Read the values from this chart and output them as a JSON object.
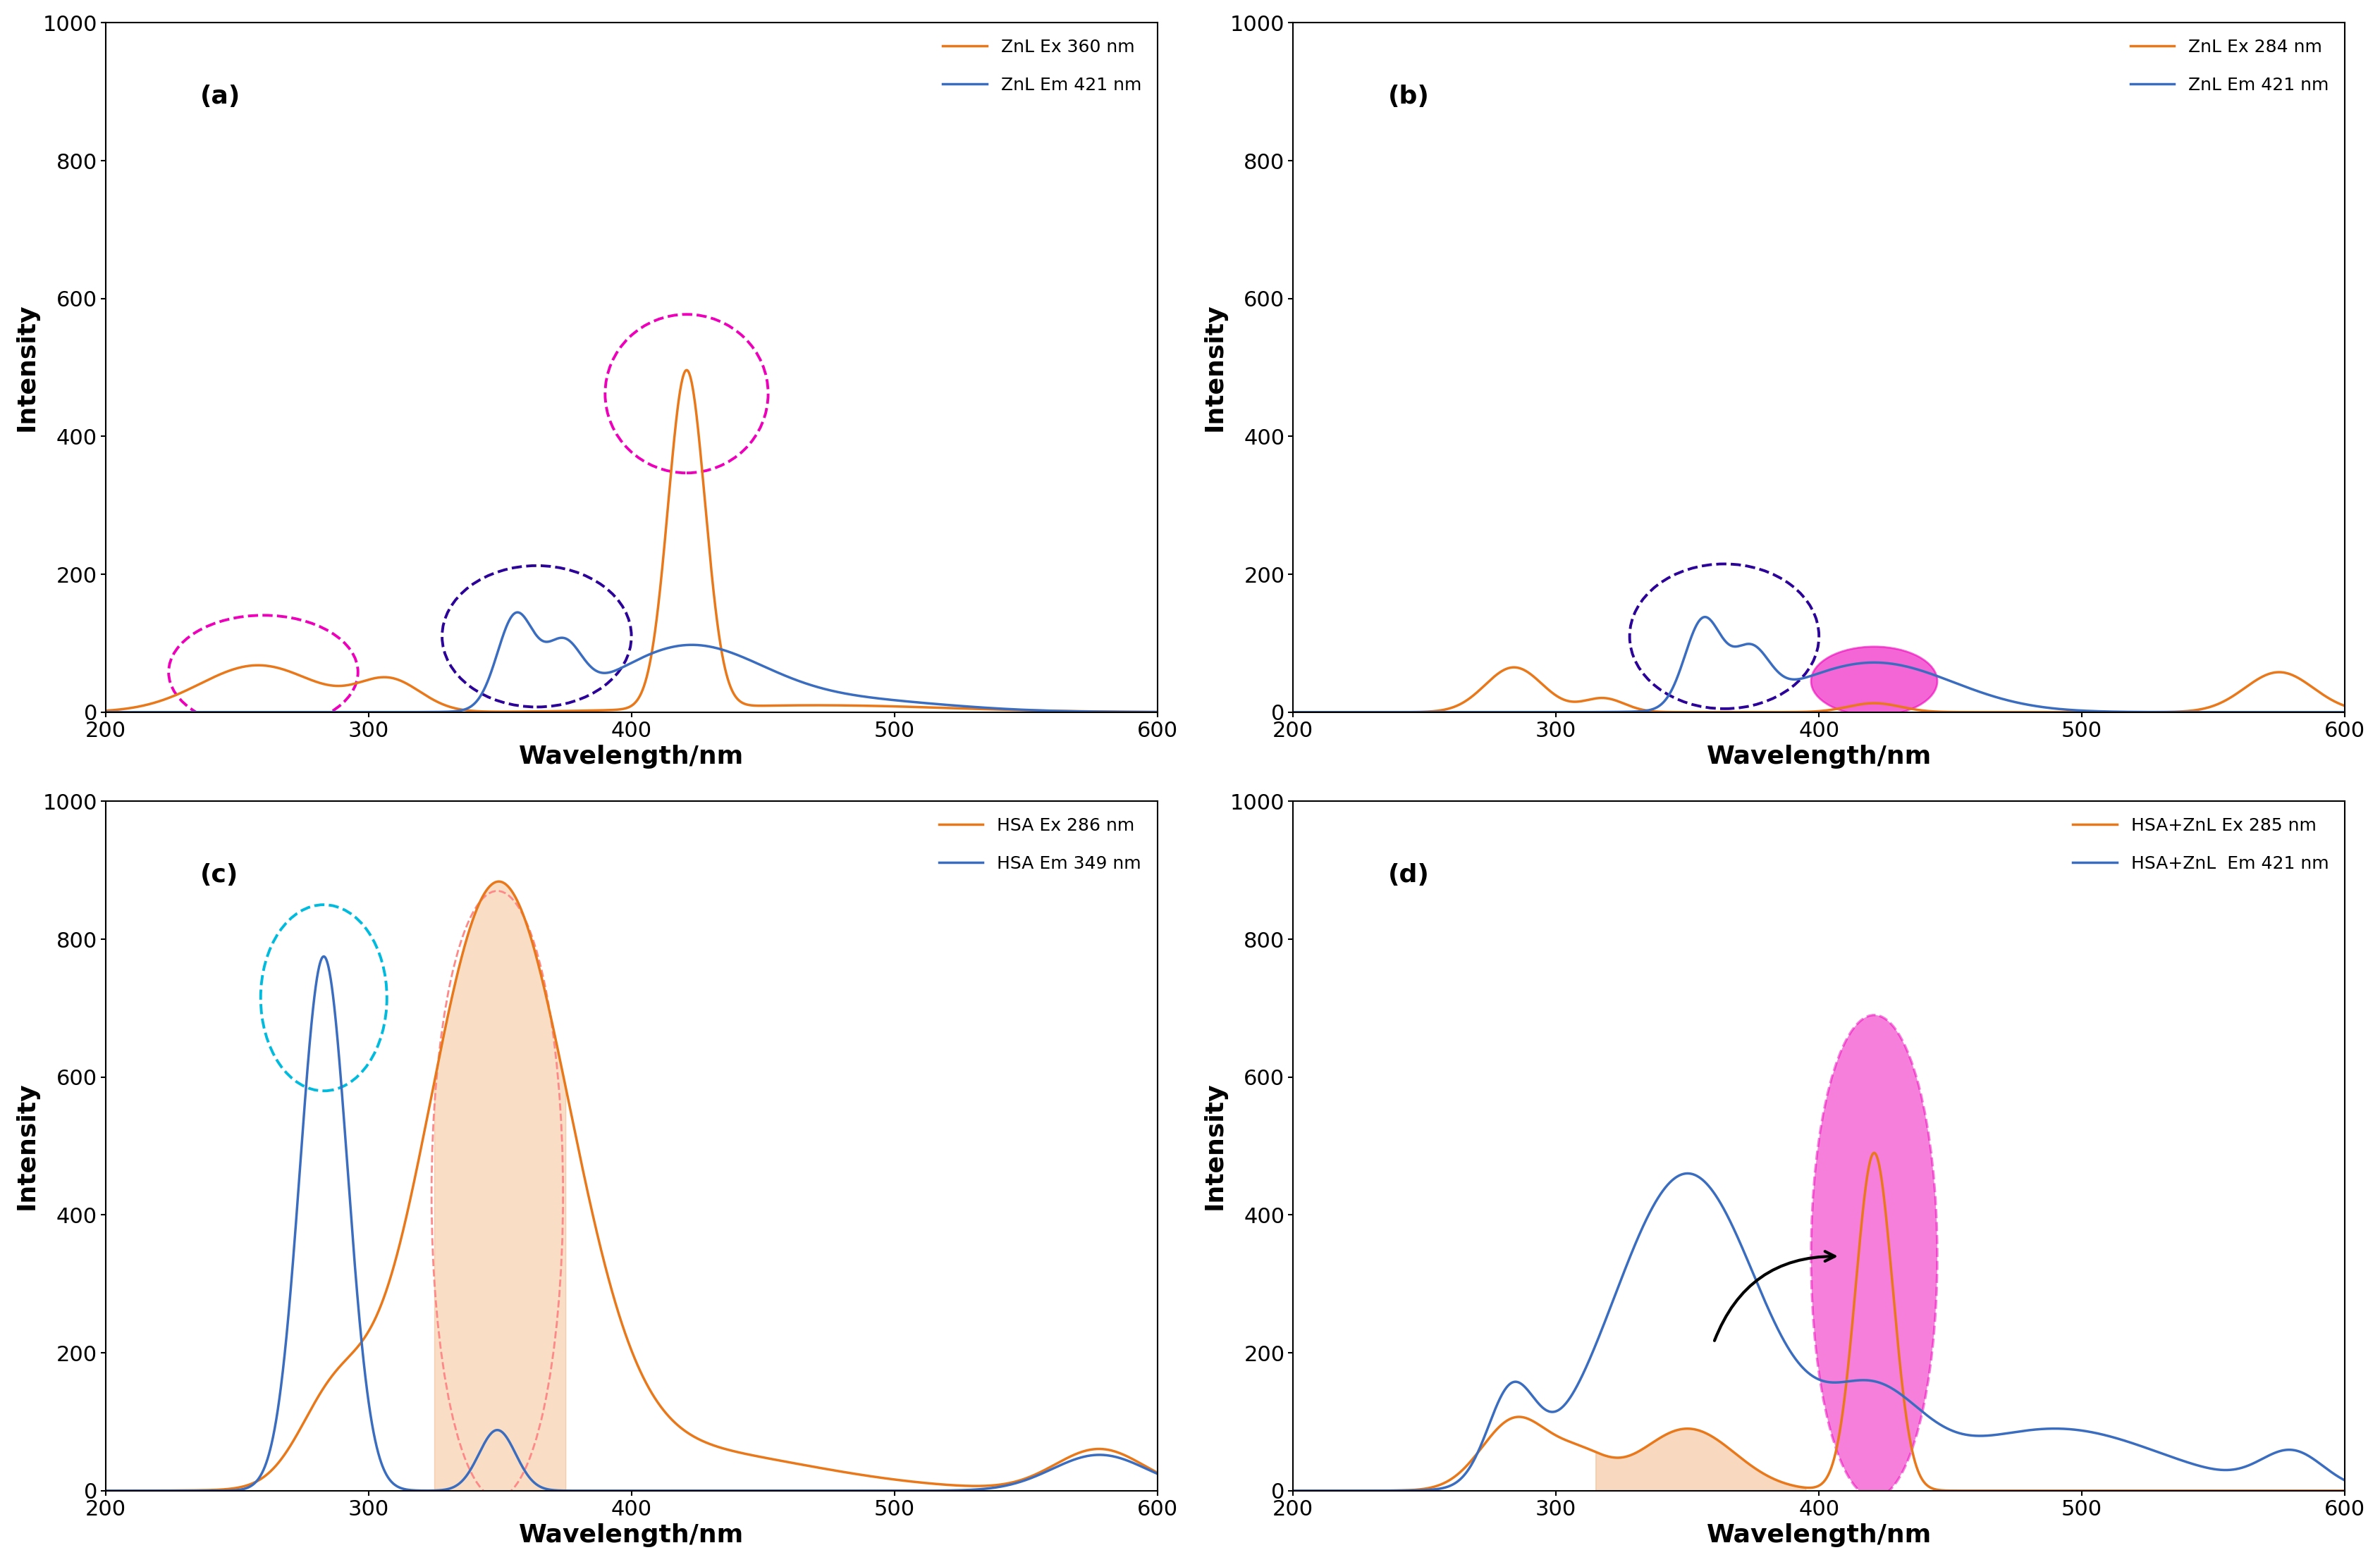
{
  "orange_color": "#E8781A",
  "blue_color": "#3A6DBF",
  "magenta_color": "#EE00BB",
  "cyan_color": "#00BBDD",
  "dark_purple": "#2B0099",
  "xlim": [
    200,
    600
  ],
  "ylim": [
    0,
    1000
  ],
  "xlabel": "Wavelength/nm",
  "ylabel": "Intensity",
  "panel_labels": [
    "(a)",
    "(b)",
    "(c)",
    "(d)"
  ],
  "legend_a": [
    "ZnL Ex 360 nm",
    "ZnL Em 421 nm"
  ],
  "legend_b": [
    "ZnL Ex 284 nm",
    "ZnL Em 421 nm"
  ],
  "legend_c": [
    "HSA Ex 286 nm",
    "HSA Em 349 nm"
  ],
  "legend_d": [
    "HSA+ZnL Ex 285 nm",
    "HSA+ZnL  Em 421 nm"
  ]
}
